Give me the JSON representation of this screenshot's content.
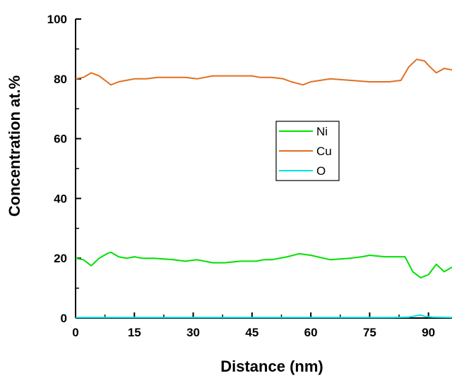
{
  "chart_data": {
    "type": "line",
    "title": "",
    "xlabel": "Distance (nm)",
    "ylabel": "Concentration at.%",
    "xlim": [
      0,
      96
    ],
    "ylim": [
      0,
      100
    ],
    "x_ticks": [
      0,
      15,
      30,
      45,
      60,
      75,
      90
    ],
    "y_ticks": [
      0,
      20,
      40,
      60,
      80,
      100
    ],
    "grid": false,
    "legend_position": "center-right",
    "series": [
      {
        "name": "Ni",
        "color": "#00e000",
        "x": [
          0,
          2,
          4,
          6,
          8,
          9,
          11,
          13,
          15,
          17,
          20,
          25,
          28,
          31,
          35,
          38,
          42,
          46,
          48,
          50,
          54,
          57,
          60,
          65,
          70,
          73,
          75,
          79,
          84,
          86,
          88,
          90,
          92,
          94,
          96
        ],
        "y": [
          20,
          19.5,
          17.5,
          20,
          21.5,
          22,
          20.5,
          20,
          20.5,
          20,
          20,
          19.5,
          19,
          19.5,
          18.5,
          18.5,
          19,
          19,
          19.5,
          19.5,
          20.5,
          21.5,
          21,
          19.5,
          20,
          20.5,
          21,
          20.5,
          20.5,
          15.5,
          13.5,
          14.5,
          18,
          15.5,
          17
        ]
      },
      {
        "name": "Cu",
        "color": "#e07020",
        "x": [
          0,
          2,
          4,
          6,
          8,
          9,
          11,
          13,
          15,
          18,
          21,
          25,
          28,
          31,
          35,
          40,
          45,
          47,
          50,
          53,
          55,
          58,
          60,
          65,
          70,
          75,
          80,
          83,
          85,
          87,
          89,
          90,
          92,
          94,
          96
        ],
        "y": [
          80,
          80.5,
          82,
          81,
          79,
          78,
          79,
          79.5,
          80,
          80,
          80.5,
          80.5,
          80.5,
          80,
          81,
          81,
          81,
          80.5,
          80.5,
          80,
          79,
          78,
          79,
          80,
          79.5,
          79,
          79,
          79.5,
          84,
          86.5,
          86,
          84.5,
          82,
          83.5,
          83
        ]
      },
      {
        "name": "O",
        "color": "#00e0e0",
        "x": [
          0,
          20,
          40,
          60,
          80,
          85,
          87,
          88,
          89,
          91,
          96
        ],
        "y": [
          0.2,
          0.2,
          0.2,
          0.2,
          0.2,
          0.3,
          0.8,
          1.0,
          0.6,
          0.3,
          0.2
        ]
      }
    ]
  }
}
